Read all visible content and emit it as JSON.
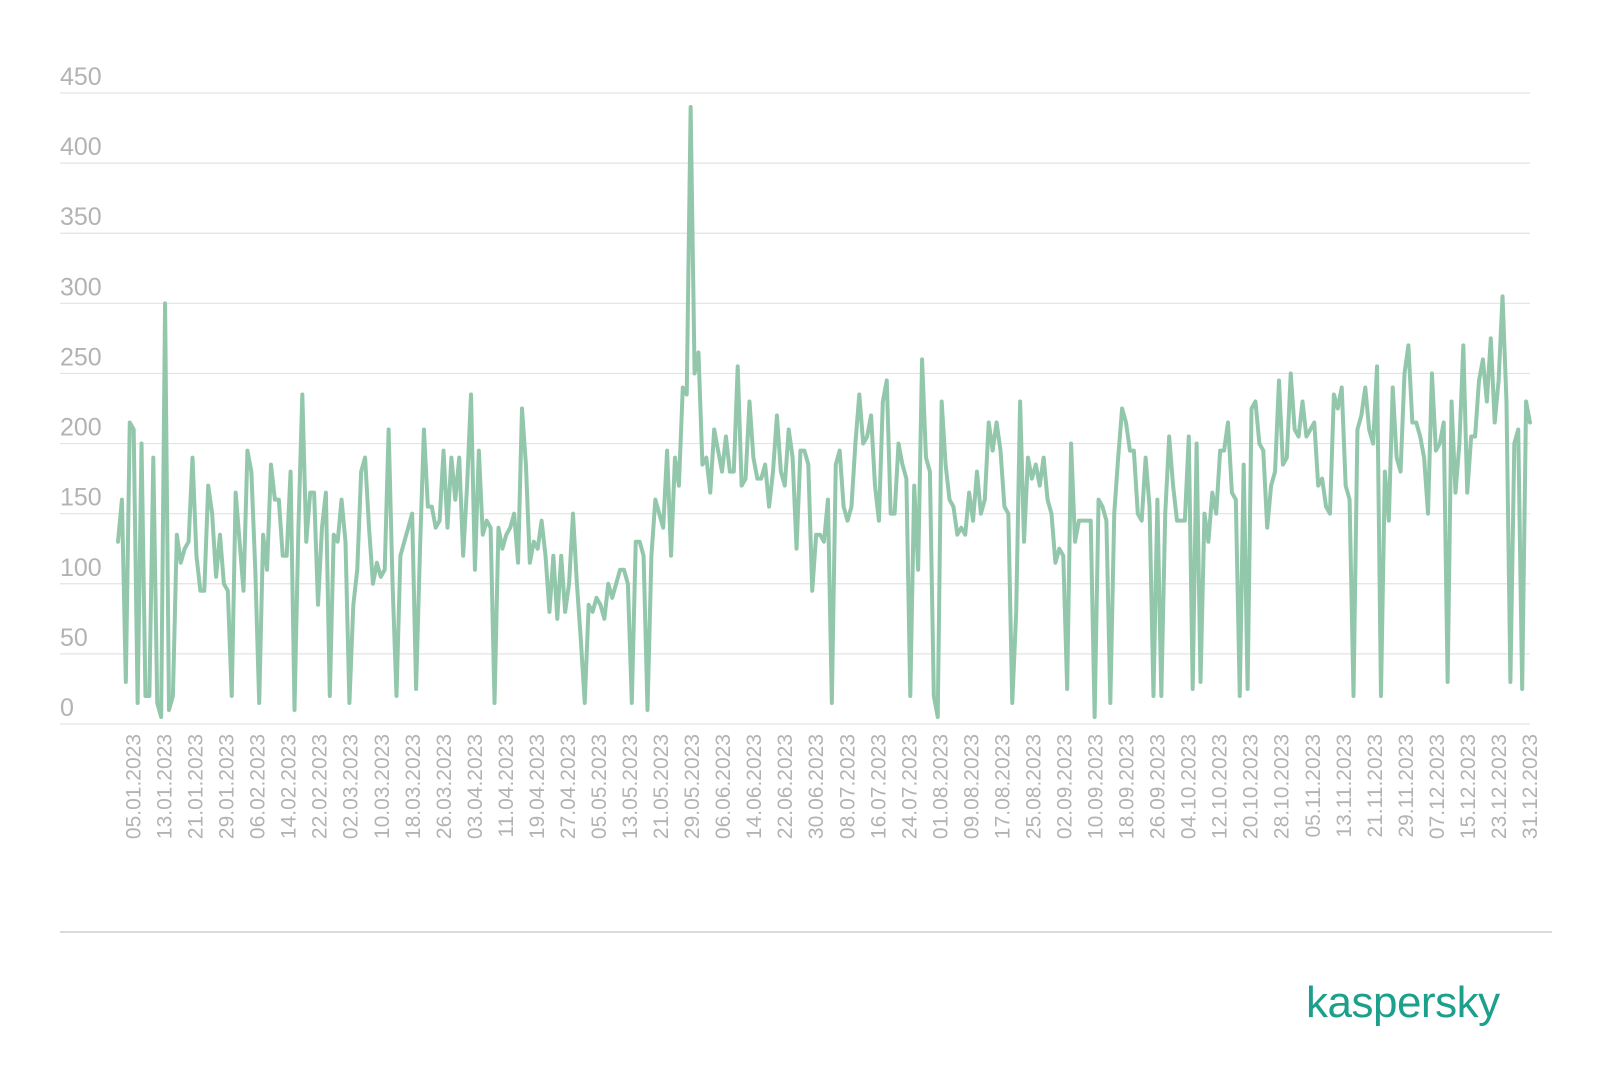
{
  "brand": {
    "logo_text": "kaspersky",
    "color": "#1ca08b"
  },
  "colors": {
    "series": "#92c7ab",
    "grid": "#e3e3e3",
    "tick": "#b3b3b3",
    "rule": "#dadada"
  },
  "chart_data": {
    "type": "line",
    "title": "",
    "xlabel": "",
    "ylabel": "",
    "ylim": [
      0,
      450
    ],
    "yticks": [
      0,
      50,
      100,
      150,
      200,
      250,
      300,
      350,
      400,
      450
    ],
    "x_start": "01.01.2023",
    "x_end": "31.12.2023",
    "xticks": [
      "05.01.2023",
      "13.01.2023",
      "21.01.2023",
      "29.01.2023",
      "06.02.2023",
      "14.02.2023",
      "22.02.2023",
      "02.03.2023",
      "10.03.2023",
      "18.03.2023",
      "26.03.2023",
      "03.04.2023",
      "11.04.2023",
      "19.04.2023",
      "27.04.2023",
      "05.05.2023",
      "13.05.2023",
      "21.05.2023",
      "29.05.2023",
      "06.06.2023",
      "14.06.2023",
      "22.06.2023",
      "30.06.2023",
      "08.07.2023",
      "16.07.2023",
      "24.07.2023",
      "01.08.2023",
      "09.08.2023",
      "17.08.2023",
      "25.08.2023",
      "02.09.2023",
      "10.09.2023",
      "18.09.2023",
      "26.09.2023",
      "04.10.2023",
      "12.10.2023",
      "20.10.2023",
      "28.10.2023",
      "05.11.2023",
      "13.11.2023",
      "21.11.2023",
      "29.11.2023",
      "07.12.2023",
      "15.12.2023",
      "23.12.2023",
      "31.12.2023"
    ],
    "grid": true,
    "legend": "none",
    "series": [
      {
        "values": [
          130,
          160,
          30,
          215,
          210,
          15,
          200,
          20,
          20,
          190,
          15,
          5,
          300,
          10,
          20,
          135,
          115,
          125,
          130,
          190,
          120,
          95,
          95,
          170,
          150,
          105,
          135,
          100,
          95,
          20,
          165,
          130,
          95,
          195,
          180,
          110,
          15,
          135,
          110,
          185,
          160,
          160,
          120,
          120,
          180,
          10,
          140,
          235,
          130,
          165,
          165,
          85,
          140,
          165,
          20,
          135,
          130,
          160,
          130,
          15,
          85,
          110,
          180,
          190,
          140,
          100,
          115,
          105,
          110,
          210,
          100,
          20,
          120,
          130,
          140,
          150,
          25,
          125,
          210,
          155,
          155,
          140,
          145,
          195,
          140,
          190,
          160,
          190,
          120,
          170,
          235,
          110,
          195,
          135,
          145,
          140,
          15,
          140,
          125,
          135,
          140,
          150,
          115,
          225,
          185,
          115,
          130,
          125,
          145,
          120,
          80,
          120,
          75,
          120,
          80,
          100,
          150,
          100,
          60,
          15,
          85,
          80,
          90,
          85,
          75,
          100,
          90,
          100,
          110,
          110,
          100,
          15,
          130,
          130,
          120,
          10,
          120,
          160,
          150,
          140,
          195,
          120,
          190,
          170,
          240,
          235,
          440,
          250,
          265,
          185,
          190,
          165,
          210,
          195,
          180,
          205,
          180,
          180,
          255,
          170,
          175,
          230,
          190,
          175,
          175,
          185,
          155,
          180,
          220,
          180,
          170,
          210,
          190,
          125,
          195,
          195,
          185,
          95,
          135,
          135,
          130,
          160,
          15,
          185,
          195,
          155,
          145,
          155,
          200,
          235,
          200,
          205,
          220,
          170,
          145,
          230,
          245,
          150,
          150,
          200,
          185,
          175,
          20,
          170,
          110,
          260,
          190,
          180,
          20,
          5,
          230,
          185,
          160,
          155,
          135,
          140,
          135,
          165,
          145,
          180,
          150,
          160,
          215,
          195,
          215,
          195,
          155,
          150,
          15,
          80,
          230,
          130,
          190,
          175,
          185,
          170,
          190,
          160,
          150,
          115,
          125,
          120,
          25,
          200,
          130,
          145,
          145,
          145,
          145,
          5,
          160,
          155,
          145,
          15,
          150,
          190,
          225,
          215,
          195,
          195,
          150,
          145,
          190,
          155,
          20,
          160,
          20,
          150,
          205,
          170,
          145,
          145,
          145,
          205,
          25,
          200,
          30,
          150,
          130,
          165,
          150,
          195,
          195,
          215,
          165,
          160,
          20,
          185,
          25,
          225,
          230,
          200,
          195,
          140,
          170,
          180,
          245,
          185,
          190,
          250,
          210,
          205,
          230,
          205,
          210,
          215,
          170,
          175,
          155,
          150,
          235,
          225,
          240,
          170,
          160,
          20,
          210,
          220,
          240,
          210,
          200,
          255,
          20,
          180,
          145,
          240,
          190,
          180,
          250,
          270,
          215,
          215,
          205,
          190,
          150,
          250,
          195,
          200,
          215,
          30,
          230,
          165,
          200,
          270,
          165,
          205,
          205,
          245,
          260,
          230,
          275,
          215,
          245,
          305,
          230,
          30,
          200,
          210,
          25,
          230,
          215
        ]
      }
    ]
  }
}
